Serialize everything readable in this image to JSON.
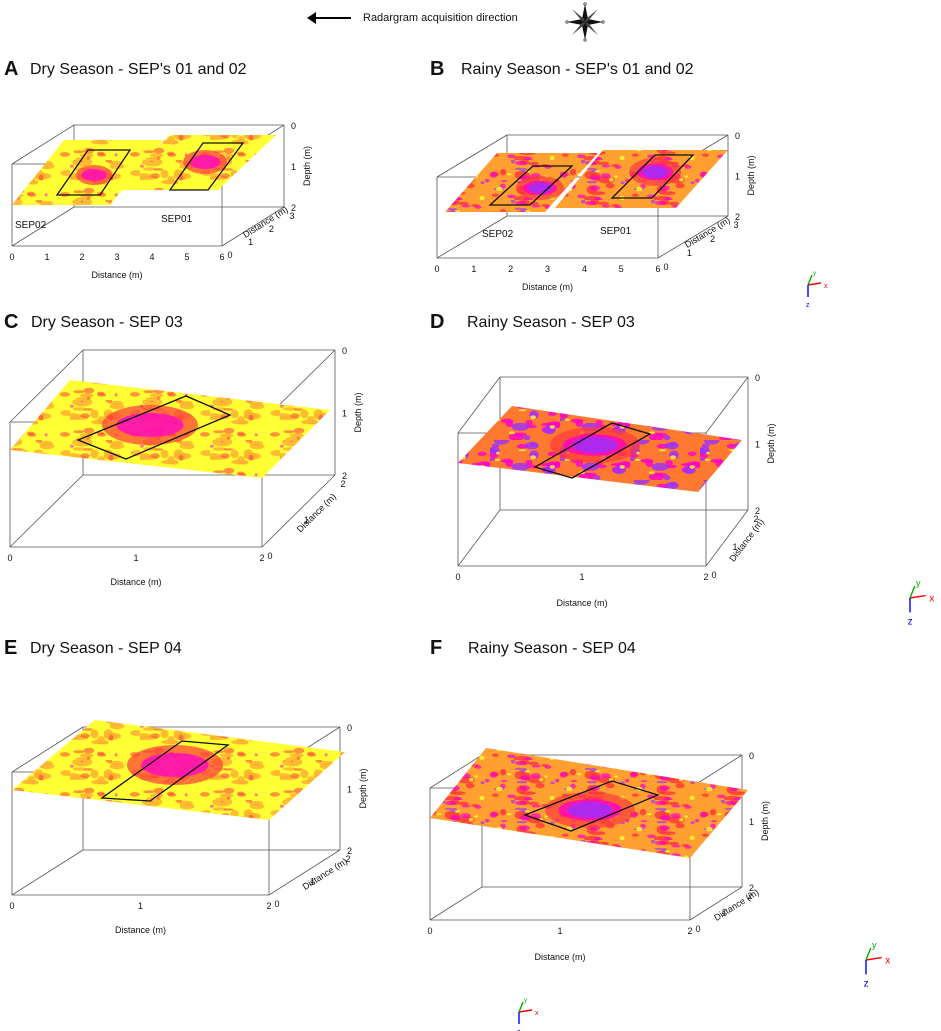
{
  "header": {
    "direction_text": "Radargram acquisition direction",
    "compass_icon": "compass-rose-icon",
    "arrow_icon": "left-arrow-icon"
  },
  "colors": {
    "low": "#ffff33",
    "mid1": "#ffb030",
    "mid2": "#ff3b3b",
    "high1": "#ff00cc",
    "high2": "#9b30ff",
    "axis_x": "#ff0000",
    "axis_y": "#00aa00",
    "axis_z": "#0000ff"
  },
  "panels": [
    {
      "letter": "A",
      "title": "Dry Season - SEP's 01 and 02",
      "depth_label": "Depth (m)",
      "depth_ticks": [
        "0",
        "1",
        "2"
      ],
      "distance_x_label": "Distance (m)",
      "distance_x_ticks": [
        "0",
        "1",
        "2",
        "3",
        "4",
        "5",
        "6"
      ],
      "distance_y_label": "Distance (m)",
      "distance_y_ticks": [
        "0",
        "1",
        "2",
        "3"
      ],
      "slices": [
        "SEP02",
        "SEP01"
      ]
    },
    {
      "letter": "B",
      "title": "Rainy Season - SEP's 01 and 02",
      "depth_label": "Depth (m)",
      "depth_ticks": [
        "0",
        "1",
        "2"
      ],
      "distance_x_label": "Distance (m)",
      "distance_x_ticks": [
        "0",
        "1",
        "2",
        "3",
        "4",
        "5",
        "6"
      ],
      "distance_y_label": "Distance (m)",
      "distance_y_ticks": [
        "0",
        "1",
        "2",
        "3"
      ],
      "slices": [
        "SEP02",
        "SEP01"
      ]
    },
    {
      "letter": "C",
      "title": "Dry Season - SEP 03",
      "depth_label": "Depth (m)",
      "depth_ticks": [
        "0",
        "1",
        "2"
      ],
      "distance_x_label": "Distance (m)",
      "distance_x_ticks": [
        "0",
        "1",
        "2"
      ],
      "distance_y_label": "Distance (m)",
      "distance_y_ticks": [
        "0",
        "1",
        "2"
      ]
    },
    {
      "letter": "D",
      "title": "Rainy Season - SEP 03",
      "depth_label": "Depth (m)",
      "depth_ticks": [
        "0",
        "1",
        "2"
      ],
      "distance_x_label": "Distance (m)",
      "distance_x_ticks": [
        "0",
        "1",
        "2"
      ],
      "distance_y_label": "Distance (m)",
      "distance_y_ticks": [
        "0",
        "1",
        "2"
      ]
    },
    {
      "letter": "E",
      "title": "Dry Season - SEP 04",
      "depth_label": "Depth (m)",
      "depth_ticks": [
        "0",
        "1",
        "2"
      ],
      "distance_x_label": "Distance (m)",
      "distance_x_ticks": [
        "0",
        "1",
        "2"
      ],
      "distance_y_label": "Distance (m)",
      "distance_y_ticks": [
        "0",
        "1",
        "2"
      ]
    },
    {
      "letter": "F",
      "title": "Rainy Season -  SEP 04",
      "depth_label": "Depth (m)",
      "depth_ticks": [
        "0",
        "1",
        "2"
      ],
      "distance_x_label": "Distance (m)",
      "distance_x_ticks": [
        "0",
        "1",
        "2"
      ],
      "distance_y_label": "Distance (m)",
      "distance_y_ticks": [
        "0",
        "1",
        "2"
      ]
    }
  ],
  "orientation_axes": {
    "x": "x",
    "y": "y",
    "z": "z"
  }
}
